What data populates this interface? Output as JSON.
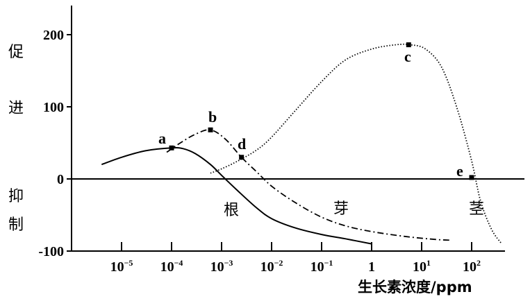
{
  "chart_data": {
    "type": "line",
    "xlabel": "生长素浓度/ppm",
    "ylabel_parts": [
      "促",
      "进",
      "抑",
      "制"
    ],
    "x_scale": "log",
    "x_tick_labels": [
      {
        "base": "10",
        "exp": "-5",
        "value": 1e-05
      },
      {
        "base": "10",
        "exp": "-4",
        "value": 0.0001
      },
      {
        "base": "10",
        "exp": "-3",
        "value": 0.001
      },
      {
        "base": "10",
        "exp": "-2",
        "value": 0.01
      },
      {
        "base": "10",
        "exp": "-1",
        "value": 0.1
      },
      {
        "base": "1",
        "exp": "",
        "value": 1
      },
      {
        "base": "10",
        "exp": "1",
        "value": 10
      },
      {
        "base": "10",
        "exp": "2",
        "value": 100
      }
    ],
    "y_ticks": [
      200,
      100,
      0,
      -100
    ],
    "ylim": [
      -100,
      240
    ],
    "series": [
      {
        "name": "根",
        "style": "solid",
        "points": [
          [
            4e-06,
            20
          ],
          [
            1e-05,
            30
          ],
          [
            3e-05,
            39
          ],
          [
            0.0001,
            43
          ],
          [
            0.00017,
            42
          ],
          [
            0.0003,
            35
          ],
          [
            0.0006,
            20
          ],
          [
            0.001,
            5
          ],
          [
            0.002,
            -15
          ],
          [
            0.005,
            -40
          ],
          [
            0.01,
            -55
          ],
          [
            0.03,
            -68
          ],
          [
            0.1,
            -77
          ],
          [
            0.3,
            -83
          ],
          [
            1,
            -90
          ]
        ]
      },
      {
        "name": "芽",
        "style": "dashdot",
        "points": [
          [
            8e-05,
            37
          ],
          [
            0.00015,
            50
          ],
          [
            0.0003,
            62
          ],
          [
            0.0006,
            68
          ],
          [
            0.0012,
            55
          ],
          [
            0.0025,
            30
          ],
          [
            0.005,
            10
          ],
          [
            0.01,
            -10
          ],
          [
            0.03,
            -33
          ],
          [
            0.1,
            -53
          ],
          [
            0.3,
            -65
          ],
          [
            1,
            -73
          ],
          [
            5,
            -80
          ],
          [
            20,
            -84
          ],
          [
            40,
            -85
          ]
        ]
      },
      {
        "name": "茎",
        "style": "dotted",
        "points": [
          [
            0.0006,
            8
          ],
          [
            0.001,
            14
          ],
          [
            0.002,
            24
          ],
          [
            0.005,
            40
          ],
          [
            0.01,
            58
          ],
          [
            0.03,
            95
          ],
          [
            0.1,
            135
          ],
          [
            0.3,
            165
          ],
          [
            1,
            180
          ],
          [
            3,
            186
          ],
          [
            6,
            186
          ],
          [
            12,
            180
          ],
          [
            25,
            155
          ],
          [
            50,
            100
          ],
          [
            100,
            25
          ],
          [
            150,
            -30
          ],
          [
            250,
            -70
          ],
          [
            400,
            -90
          ]
        ]
      }
    ],
    "points": [
      {
        "label": "a",
        "x": 0.0001,
        "y": 43,
        "marker": true
      },
      {
        "label": "b",
        "x": 0.0006,
        "y": 68,
        "marker": true
      },
      {
        "label": "d",
        "x": 0.0025,
        "y": 30,
        "marker": true
      },
      {
        "label": "c",
        "x": 5.5,
        "y": 186,
        "marker": true
      },
      {
        "label": "e",
        "x": 100,
        "y": 2,
        "marker": true
      }
    ]
  }
}
